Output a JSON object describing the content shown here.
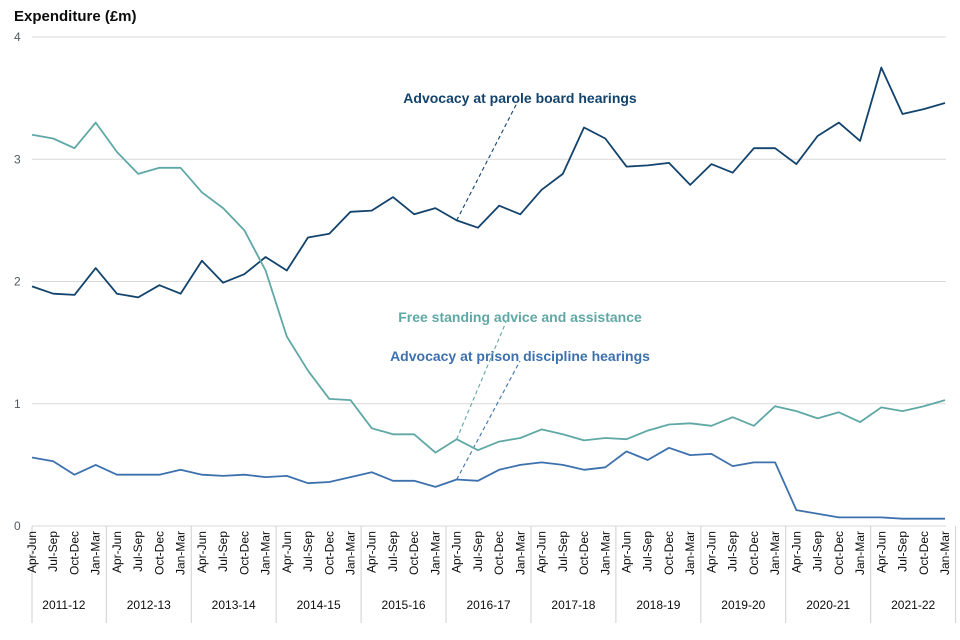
{
  "chart_data": {
    "type": "line",
    "title": "",
    "ylabel": "Expenditure (£m)",
    "xlabel": "",
    "ylim": [
      0,
      4
    ],
    "yticks": [
      "0",
      "1",
      "2",
      "3",
      "4"
    ],
    "grid": true,
    "x_quarters": [
      "Apr-Jun",
      "Jul-Sep",
      "Oct-Dec",
      "Jan-Mar"
    ],
    "x_groups": [
      "2011-12",
      "2012-13",
      "2013-14",
      "2014-15",
      "2015-16",
      "2016-17",
      "2017-18",
      "2018-19",
      "2019-20",
      "2020-21",
      "2021-22"
    ],
    "series": [
      {
        "name": "Advocacy at parole board hearings",
        "color": "#12436d",
        "label_anchor_index": 20,
        "values": [
          1.96,
          1.9,
          1.89,
          2.11,
          1.9,
          1.87,
          1.97,
          1.9,
          2.17,
          1.99,
          2.06,
          2.2,
          2.09,
          2.36,
          2.39,
          2.57,
          2.58,
          2.69,
          2.55,
          2.6,
          2.5,
          2.44,
          2.62,
          2.55,
          2.75,
          2.88,
          3.26,
          3.17,
          2.94,
          2.95,
          2.97,
          2.79,
          2.96,
          2.89,
          3.09,
          3.09,
          2.96,
          3.19,
          3.3,
          3.15,
          3.75,
          3.37,
          3.41,
          3.46
        ]
      },
      {
        "name": "Free standing advice and assistance",
        "color": "#5fa8a5",
        "label_anchor_index": 20,
        "values": [
          3.2,
          3.17,
          3.09,
          3.3,
          3.06,
          2.88,
          2.93,
          2.93,
          2.73,
          2.6,
          2.42,
          2.09,
          1.55,
          1.27,
          1.04,
          1.03,
          0.8,
          0.75,
          0.75,
          0.6,
          0.71,
          0.62,
          0.69,
          0.72,
          0.79,
          0.75,
          0.7,
          0.72,
          0.71,
          0.78,
          0.83,
          0.84,
          0.82,
          0.89,
          0.82,
          0.98,
          0.94,
          0.88,
          0.93,
          0.85,
          0.97,
          0.94,
          0.98,
          1.03
        ]
      },
      {
        "name": "Advocacy at prison discipline hearings",
        "color": "#3d71ae",
        "label_anchor_index": 20,
        "values": [
          0.56,
          0.53,
          0.42,
          0.5,
          0.42,
          0.42,
          0.42,
          0.46,
          0.42,
          0.41,
          0.42,
          0.4,
          0.41,
          0.35,
          0.36,
          0.4,
          0.44,
          0.37,
          0.37,
          0.32,
          0.38,
          0.37,
          0.46,
          0.5,
          0.52,
          0.5,
          0.46,
          0.48,
          0.61,
          0.54,
          0.64,
          0.58,
          0.59,
          0.49,
          0.52,
          0.52,
          0.13,
          0.1,
          0.07,
          0.07,
          0.07,
          0.06,
          0.06,
          0.06
        ]
      }
    ],
    "annotations": [
      {
        "text": "Advocacy at parole board hearings",
        "series_index": 0,
        "color": "#12436d"
      },
      {
        "text": "Free standing advice and assistance",
        "series_index": 1,
        "color": "#5fa8a5"
      },
      {
        "text": "Advocacy at prison discipline hearings",
        "series_index": 2,
        "color": "#3d71ae"
      }
    ]
  }
}
